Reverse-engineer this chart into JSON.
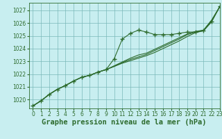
{
  "title": "Graphe pression niveau de la mer (hPa)",
  "bg_color": "#c8eef0",
  "grid_color": "#7ab8b8",
  "line_color": "#2d6b2d",
  "xlim": [
    -0.5,
    23
  ],
  "ylim": [
    1019.3,
    1027.6
  ],
  "xticks": [
    0,
    1,
    2,
    3,
    4,
    5,
    6,
    7,
    8,
    9,
    10,
    11,
    12,
    13,
    14,
    15,
    16,
    17,
    18,
    19,
    20,
    21,
    22,
    23
  ],
  "yticks": [
    1020,
    1021,
    1022,
    1023,
    1024,
    1025,
    1026,
    1027
  ],
  "series": [
    [
      1019.5,
      1019.9,
      1020.4,
      1020.8,
      1021.1,
      1021.45,
      1021.75,
      1021.9,
      1022.15,
      1022.35,
      1023.2,
      1024.75,
      1025.2,
      1025.45,
      1025.3,
      1025.1,
      1025.1,
      1025.1,
      1025.2,
      1025.3,
      1025.3,
      1025.4,
      1026.15,
      1027.3
    ],
    [
      1019.5,
      1019.9,
      1020.4,
      1020.8,
      1021.1,
      1021.45,
      1021.75,
      1021.9,
      1022.15,
      1022.35,
      1022.6,
      1022.85,
      1023.05,
      1023.25,
      1023.45,
      1023.7,
      1024.0,
      1024.3,
      1024.6,
      1024.95,
      1025.25,
      1025.4,
      1026.1,
      1027.3
    ],
    [
      1019.5,
      1019.9,
      1020.4,
      1020.8,
      1021.1,
      1021.45,
      1021.75,
      1021.9,
      1022.15,
      1022.35,
      1022.6,
      1022.9,
      1023.15,
      1023.35,
      1023.55,
      1023.85,
      1024.15,
      1024.45,
      1024.75,
      1025.1,
      1025.3,
      1025.45,
      1026.2,
      1027.3
    ],
    [
      1019.5,
      1019.9,
      1020.4,
      1020.8,
      1021.1,
      1021.45,
      1021.75,
      1021.9,
      1022.15,
      1022.35,
      1022.65,
      1022.95,
      1023.25,
      1023.5,
      1023.65,
      1023.95,
      1024.25,
      1024.55,
      1024.85,
      1025.15,
      1025.35,
      1025.45,
      1026.25,
      1027.3
    ]
  ],
  "marker": "+",
  "markersize": 4,
  "markeredgewidth": 1.0,
  "linewidth": 0.8,
  "title_fontsize": 7.5,
  "tick_fontsize": 5.5
}
